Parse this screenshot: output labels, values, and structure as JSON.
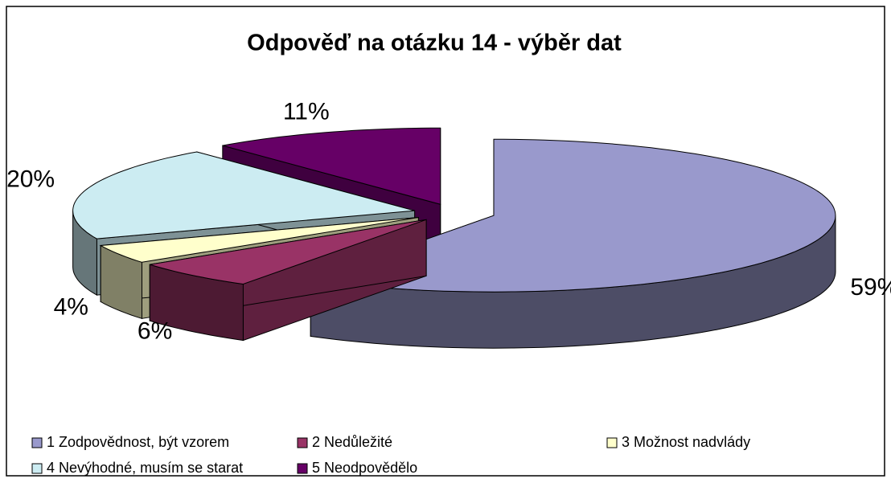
{
  "chart_data": {
    "type": "pie",
    "title": "Odpověď na otázku 14 - výběr dat",
    "categories": [
      "1 Zodpovědnost, být vzorem",
      "2 Nedůležité",
      "3 Možnost nadvlády",
      "4 Nevýhodné, musím se starat",
      "5 Neodpovědělo"
    ],
    "values": [
      59,
      6,
      4,
      20,
      11
    ],
    "value_labels": [
      "59%",
      "6%",
      "4%",
      "20%",
      "11%"
    ],
    "colors": [
      "#9999cc",
      "#993366",
      "#ffffcc",
      "#ccecf2",
      "#660066"
    ],
    "legend": "bottom"
  }
}
